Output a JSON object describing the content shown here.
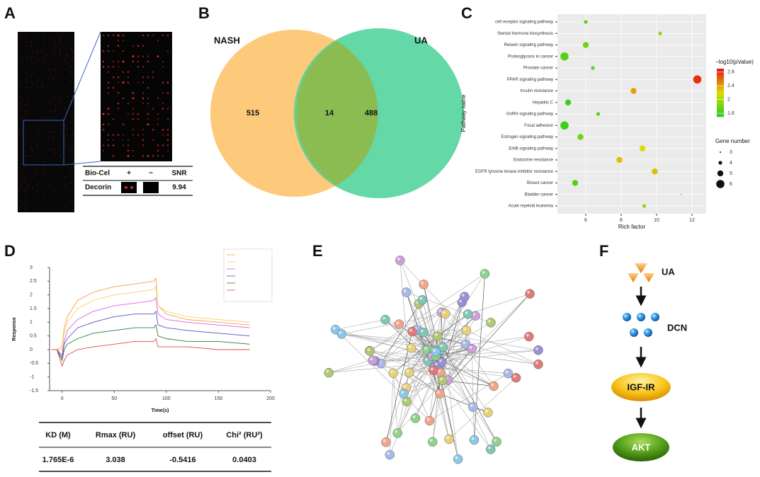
{
  "panel_labels": [
    "A",
    "B",
    "C",
    "D",
    "E",
    "F"
  ],
  "panel_a": {
    "header": [
      "Bio-Cel",
      "+",
      "−",
      "SNR"
    ],
    "row_label": "Decorin",
    "row_snr": "9.94"
  },
  "chart_data": [
    {
      "type": "venn",
      "sets": [
        "NASH",
        "UA"
      ],
      "values": [
        515,
        14,
        488
      ],
      "colors": [
        "#fdc97b",
        "#4fd39b"
      ]
    },
    {
      "type": "bubble",
      "categories": [
        "cell receptor signaling pathway",
        "Steroid hormone biosynthesis",
        "Relaxin signaling pathway",
        "Proteoglycans in cancer",
        "Prostate cancer",
        "PPAR signaling pathway",
        "Insulin resistance",
        "Hepatitis C",
        "GnRH signaling pathway",
        "Focal adhesion",
        "Estrogen signaling pathway",
        "ErbB signaling pathway",
        "Endocrine resistance",
        "EGFR tyrosine kinase inhibitor resistance",
        "Breast cancer",
        "Bladder cancer",
        "Acute myeloid leukemia"
      ],
      "x": [
        6.0,
        10.2,
        6.0,
        4.8,
        6.4,
        12.3,
        8.7,
        5.0,
        6.7,
        4.8,
        5.7,
        9.2,
        7.9,
        9.9,
        5.4,
        11.4,
        9.3
      ],
      "color_values": [
        1.7,
        1.9,
        1.8,
        1.7,
        1.7,
        2.8,
        2.4,
        1.6,
        1.7,
        1.6,
        1.8,
        2.2,
        2.3,
        2.3,
        1.7,
        1.9,
        1.9
      ],
      "sizes": [
        4,
        4,
        5,
        6,
        4,
        6,
        5,
        5,
        4,
        6,
        5,
        5,
        5,
        5,
        5,
        3,
        4
      ],
      "xlim": [
        4.4,
        12.8
      ],
      "xticks": [
        6,
        8,
        10,
        12
      ],
      "xlabel": "Rich factor",
      "ylabel": "Pathway name",
      "colorbar": {
        "title": "−log10(pValue)",
        "clim": [
          1.5,
          2.9
        ],
        "ticks": [
          2.8,
          2.4,
          2.0,
          1.6
        ]
      },
      "size_legend": {
        "title": "Gene number",
        "values": [
          3,
          4,
          5,
          6
        ]
      }
    },
    {
      "type": "line",
      "x": [
        -10,
        -5,
        0,
        2,
        5,
        15,
        30,
        50,
        70,
        88,
        90,
        92,
        100,
        120,
        150,
        180
      ],
      "series": [
        {
          "color": "#f5a04a",
          "values": [
            0,
            0,
            0.1,
            0.8,
            1.2,
            1.8,
            2.1,
            2.3,
            2.4,
            2.5,
            2.6,
            1.6,
            1.3,
            1.1,
            1.0,
            0.9
          ]
        },
        {
          "color": "#f3d36a",
          "values": [
            0,
            0,
            0,
            0.6,
            1.0,
            1.5,
            1.8,
            2.0,
            2.1,
            2.2,
            2.3,
            1.6,
            1.4,
            1.2,
            1.1,
            1.0
          ]
        },
        {
          "color": "#e05ee0",
          "values": [
            0,
            0,
            -0.2,
            0.3,
            0.7,
            1.1,
            1.4,
            1.6,
            1.7,
            1.8,
            1.9,
            1.3,
            1.1,
            1.0,
            0.9,
            0.8
          ]
        },
        {
          "color": "#5a4fc0",
          "values": [
            0,
            0,
            -0.3,
            0.2,
            0.4,
            0.8,
            1.0,
            1.2,
            1.3,
            1.3,
            1.4,
            0.9,
            0.8,
            0.7,
            0.6,
            0.5
          ]
        },
        {
          "color": "#2f7a3a",
          "values": [
            0,
            0,
            -0.4,
            0,
            0.2,
            0.4,
            0.6,
            0.7,
            0.8,
            0.8,
            0.9,
            0.5,
            0.4,
            0.3,
            0.3,
            0.2
          ]
        },
        {
          "color": "#e04848",
          "values": [
            0,
            0,
            -0.6,
            -0.4,
            -0.2,
            0,
            0.1,
            0.2,
            0.3,
            0.3,
            0.4,
            0.1,
            0.1,
            0.1,
            0.0,
            0.0
          ]
        }
      ],
      "xlim": [
        -12,
        200
      ],
      "xticks": [
        0,
        50,
        100,
        150,
        200
      ],
      "ylim": [
        -1.5,
        3
      ],
      "yticks": [
        -1.5,
        -1,
        -0.5,
        0,
        0.5,
        1,
        1.5,
        2,
        2.5,
        3
      ],
      "xlabel": "Time(s)",
      "ylabel": "Response",
      "table": {
        "header": [
          "KD (M)",
          "Rmax (RU)",
          "offset (RU)",
          "Chi² (RU²)"
        ],
        "row": [
          "1.765E-6",
          "3.038",
          "-0.5416",
          "0.0403"
        ]
      }
    }
  ],
  "panel_f": {
    "steps": [
      "UA",
      "DCN",
      "IGF-IR",
      "AKT"
    ]
  }
}
